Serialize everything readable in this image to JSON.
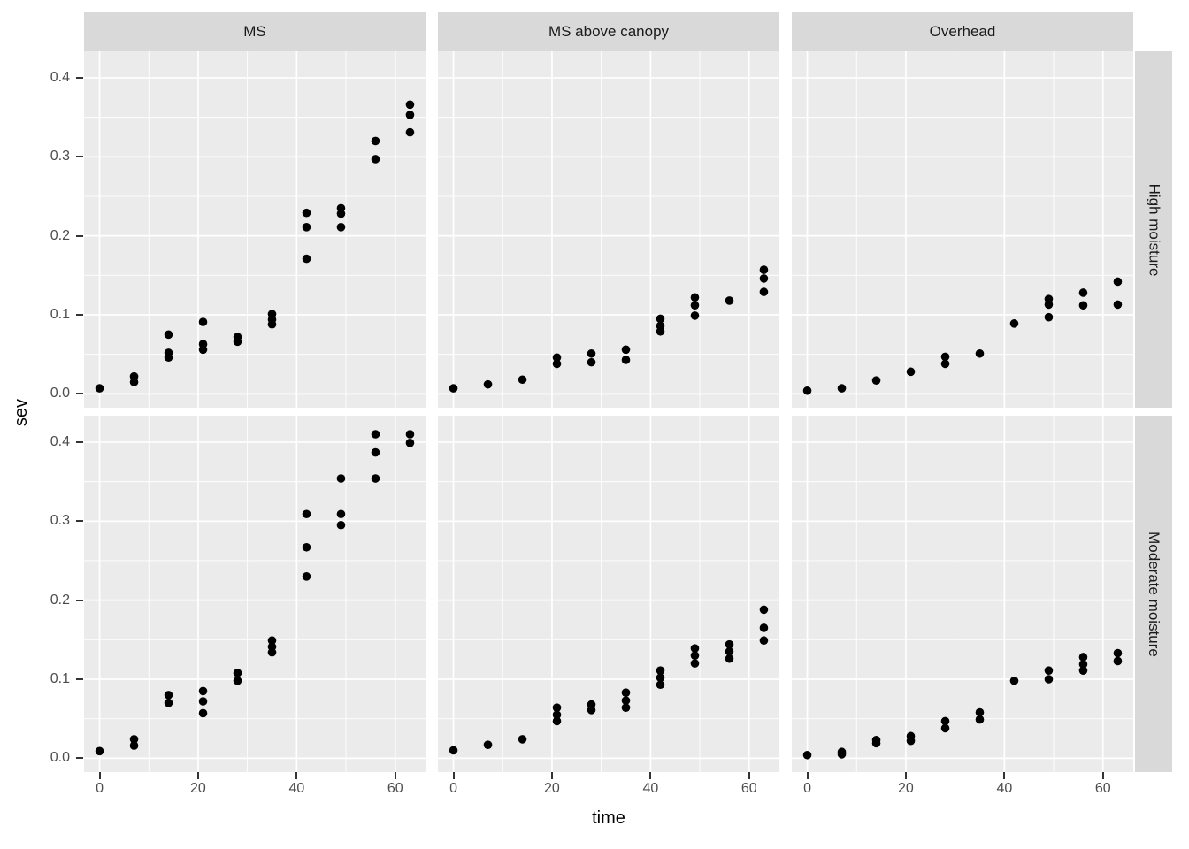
{
  "chart_data": {
    "type": "scatter",
    "title": "",
    "xlabel": "time",
    "ylabel": "sev",
    "x_ticks": [
      0,
      20,
      40,
      60
    ],
    "x_minor_ticks": [
      10,
      30,
      50
    ],
    "y_ticks": [
      0.0,
      0.1,
      0.2,
      0.3,
      0.4
    ],
    "y_tick_labels": [
      "0.0",
      "0.1",
      "0.2",
      "0.3",
      "0.4"
    ],
    "y_minor_ticks": [
      0.05,
      0.15,
      0.25,
      0.35
    ],
    "xlim": [
      -3.15,
      66.15
    ],
    "ylim": [
      -0.0175,
      0.4335
    ],
    "grid": "on",
    "legend": "none",
    "x_values": [
      0,
      7,
      14,
      21,
      28,
      35,
      42,
      49,
      56,
      63
    ],
    "facet": {
      "col_labels": [
        "MS",
        "MS above canopy",
        "Overhead"
      ],
      "row_labels": [
        "High moisture",
        "Moderate moisture"
      ]
    },
    "panels": [
      {
        "col": "MS",
        "row": "High moisture",
        "points": [
          [
            0,
            0.007
          ],
          [
            7,
            0.022
          ],
          [
            7,
            0.015
          ],
          [
            14,
            0.075
          ],
          [
            14,
            0.052
          ],
          [
            14,
            0.046
          ],
          [
            21,
            0.091
          ],
          [
            21,
            0.063
          ],
          [
            21,
            0.056
          ],
          [
            28,
            0.072
          ],
          [
            28,
            0.066
          ],
          [
            35,
            0.101
          ],
          [
            35,
            0.094
          ],
          [
            35,
            0.088
          ],
          [
            42,
            0.229
          ],
          [
            42,
            0.211
          ],
          [
            42,
            0.171
          ],
          [
            49,
            0.235
          ],
          [
            49,
            0.228
          ],
          [
            49,
            0.211
          ],
          [
            56,
            0.32
          ],
          [
            56,
            0.297
          ],
          [
            63,
            0.366
          ],
          [
            63,
            0.353
          ],
          [
            63,
            0.331
          ]
        ]
      },
      {
        "col": "MS above canopy",
        "row": "High moisture",
        "points": [
          [
            0,
            0.007
          ],
          [
            7,
            0.012
          ],
          [
            14,
            0.018
          ],
          [
            21,
            0.046
          ],
          [
            21,
            0.038
          ],
          [
            28,
            0.051
          ],
          [
            28,
            0.04
          ],
          [
            35,
            0.056
          ],
          [
            35,
            0.043
          ],
          [
            42,
            0.095
          ],
          [
            42,
            0.086
          ],
          [
            42,
            0.079
          ],
          [
            49,
            0.122
          ],
          [
            49,
            0.112
          ],
          [
            49,
            0.099
          ],
          [
            56,
            0.118
          ],
          [
            63,
            0.157
          ],
          [
            63,
            0.146
          ],
          [
            63,
            0.129
          ]
        ]
      },
      {
        "col": "Overhead",
        "row": "High moisture",
        "points": [
          [
            0,
            0.004
          ],
          [
            7,
            0.007
          ],
          [
            14,
            0.017
          ],
          [
            21,
            0.028
          ],
          [
            28,
            0.047
          ],
          [
            28,
            0.038
          ],
          [
            35,
            0.051
          ],
          [
            42,
            0.089
          ],
          [
            49,
            0.12
          ],
          [
            49,
            0.113
          ],
          [
            49,
            0.097
          ],
          [
            56,
            0.128
          ],
          [
            56,
            0.112
          ],
          [
            63,
            0.142
          ],
          [
            63,
            0.113
          ]
        ]
      },
      {
        "col": "MS",
        "row": "Moderate moisture",
        "points": [
          [
            0,
            0.009
          ],
          [
            7,
            0.024
          ],
          [
            7,
            0.016
          ],
          [
            14,
            0.08
          ],
          [
            14,
            0.07
          ],
          [
            21,
            0.085
          ],
          [
            21,
            0.072
          ],
          [
            21,
            0.057
          ],
          [
            28,
            0.108
          ],
          [
            28,
            0.098
          ],
          [
            35,
            0.149
          ],
          [
            35,
            0.141
          ],
          [
            35,
            0.134
          ],
          [
            42,
            0.309
          ],
          [
            42,
            0.267
          ],
          [
            42,
            0.23
          ],
          [
            49,
            0.354
          ],
          [
            49,
            0.309
          ],
          [
            49,
            0.295
          ],
          [
            56,
            0.41
          ],
          [
            56,
            0.387
          ],
          [
            56,
            0.354
          ],
          [
            63,
            0.41
          ],
          [
            63,
            0.399
          ]
        ]
      },
      {
        "col": "MS above canopy",
        "row": "Moderate moisture",
        "points": [
          [
            0,
            0.01
          ],
          [
            7,
            0.017
          ],
          [
            14,
            0.024
          ],
          [
            21,
            0.064
          ],
          [
            21,
            0.055
          ],
          [
            21,
            0.047
          ],
          [
            28,
            0.068
          ],
          [
            28,
            0.061
          ],
          [
            35,
            0.083
          ],
          [
            35,
            0.073
          ],
          [
            35,
            0.064
          ],
          [
            42,
            0.111
          ],
          [
            42,
            0.102
          ],
          [
            42,
            0.093
          ],
          [
            49,
            0.139
          ],
          [
            49,
            0.13
          ],
          [
            49,
            0.12
          ],
          [
            56,
            0.144
          ],
          [
            56,
            0.135
          ],
          [
            56,
            0.126
          ],
          [
            63,
            0.188
          ],
          [
            63,
            0.165
          ],
          [
            63,
            0.149
          ]
        ]
      },
      {
        "col": "Overhead",
        "row": "Moderate moisture",
        "points": [
          [
            0,
            0.004
          ],
          [
            7,
            0.008
          ],
          [
            7,
            0.005
          ],
          [
            14,
            0.023
          ],
          [
            14,
            0.019
          ],
          [
            21,
            0.028
          ],
          [
            21,
            0.022
          ],
          [
            28,
            0.047
          ],
          [
            28,
            0.038
          ],
          [
            35,
            0.058
          ],
          [
            35,
            0.049
          ],
          [
            42,
            0.098
          ],
          [
            49,
            0.111
          ],
          [
            49,
            0.1
          ],
          [
            56,
            0.128
          ],
          [
            56,
            0.119
          ],
          [
            56,
            0.111
          ],
          [
            63,
            0.133
          ],
          [
            63,
            0.123
          ]
        ]
      }
    ],
    "colors": {
      "background": "#FFFFFF",
      "panel_bg": "#EBEBEB",
      "strip_bg": "#D9D9D9",
      "grid_major": "#FFFFFF",
      "grid_minor": "#FFFFFF",
      "point": "#000000",
      "tick_label": "#4D4D4D",
      "tick_mark": "#333333",
      "axis_title": "#000000"
    }
  }
}
